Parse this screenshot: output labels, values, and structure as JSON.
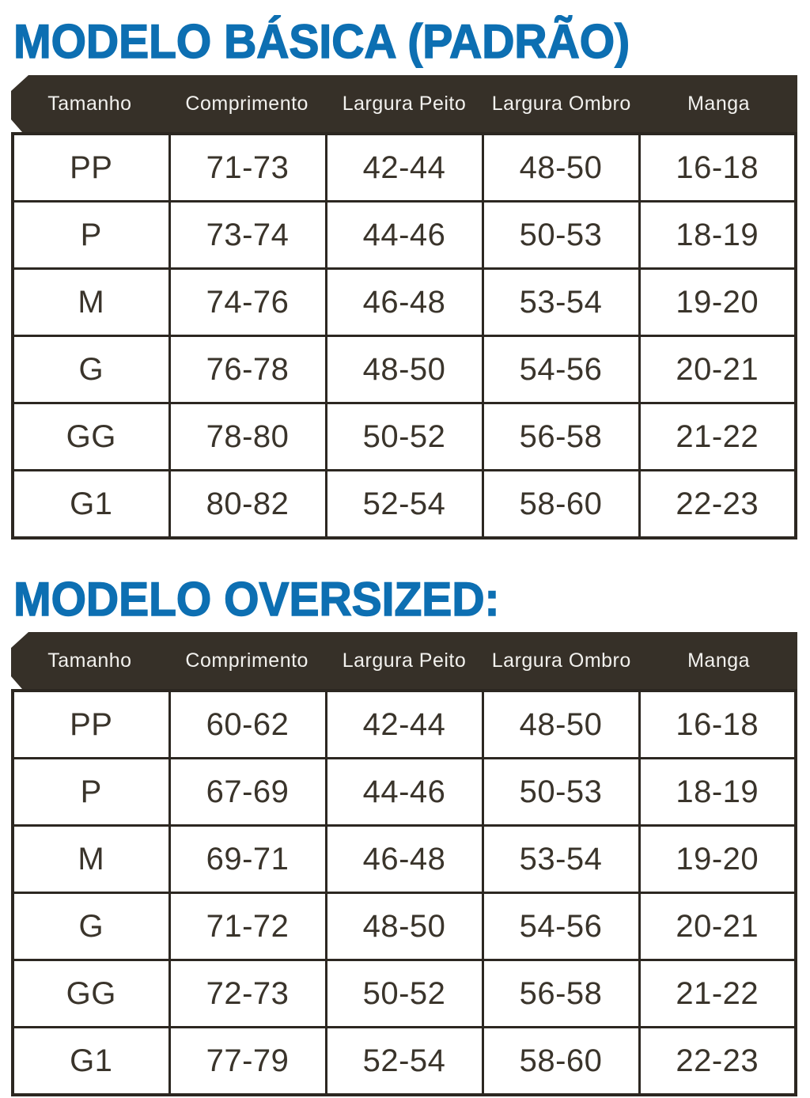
{
  "colors": {
    "title_blue": "#0d6fb2",
    "header_bg": "#363028",
    "header_text": "#f2f1ee",
    "grid_border": "#2c2721",
    "cell_text": "#3a342b",
    "page_bg": "#ffffff"
  },
  "chart_data": [
    {
      "type": "table",
      "title": "MODELO BÁSICA (PADRÃO)",
      "columns": [
        "Tamanho",
        "Comprimento",
        "Largura Peito",
        "Largura Ombro",
        "Manga"
      ],
      "rows": [
        [
          "PP",
          "71-73",
          "42-44",
          "48-50",
          "16-18"
        ],
        [
          "P",
          "73-74",
          "44-46",
          "50-53",
          "18-19"
        ],
        [
          "M",
          "74-76",
          "46-48",
          "53-54",
          "19-20"
        ],
        [
          "G",
          "76-78",
          "48-50",
          "54-56",
          "20-21"
        ],
        [
          "GG",
          "78-80",
          "50-52",
          "56-58",
          "21-22"
        ],
        [
          "G1",
          "80-82",
          "52-54",
          "58-60",
          "22-23"
        ]
      ]
    },
    {
      "type": "table",
      "title": "MODELO OVERSIZED:",
      "columns": [
        "Tamanho",
        "Comprimento",
        "Largura Peito",
        "Largura Ombro",
        "Manga"
      ],
      "rows": [
        [
          "PP",
          "60-62",
          "42-44",
          "48-50",
          "16-18"
        ],
        [
          "P",
          "67-69",
          "44-46",
          "50-53",
          "18-19"
        ],
        [
          "M",
          "69-71",
          "46-48",
          "53-54",
          "19-20"
        ],
        [
          "G",
          "71-72",
          "48-50",
          "54-56",
          "20-21"
        ],
        [
          "GG",
          "72-73",
          "50-52",
          "56-58",
          "21-22"
        ],
        [
          "G1",
          "77-79",
          "52-54",
          "58-60",
          "22-23"
        ]
      ]
    }
  ]
}
